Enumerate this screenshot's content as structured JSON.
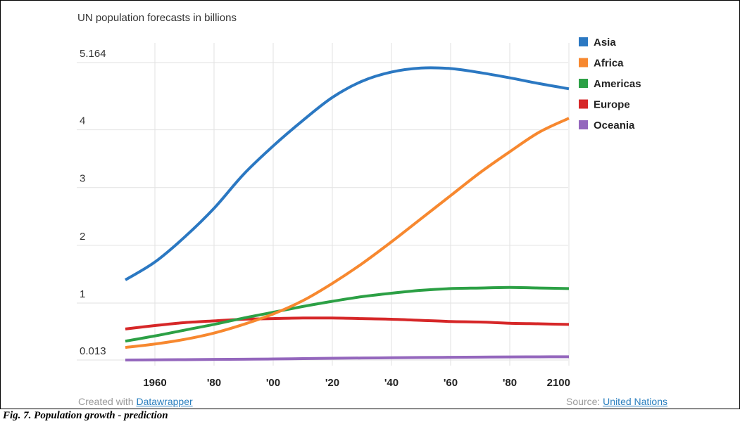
{
  "chart_data": {
    "type": "line",
    "title": "UN population forecasts in billions",
    "x": [
      1950,
      1960,
      1970,
      1980,
      1990,
      2000,
      2010,
      2020,
      2030,
      2040,
      2050,
      2060,
      2070,
      2080,
      2090,
      2100
    ],
    "x_tick_values": [
      1960,
      1980,
      2000,
      2020,
      2040,
      2060,
      2080,
      2100
    ],
    "x_tick_labels": [
      "1960",
      "'80",
      "'00",
      "'20",
      "'40",
      "'60",
      "'80",
      "2100"
    ],
    "y_tick_values": [
      5.164,
      4,
      3,
      2,
      1,
      0.013
    ],
    "y_tick_labels": [
      "5.164",
      "4",
      "3",
      "2",
      "1",
      "0.013"
    ],
    "xlim": [
      1950,
      2100
    ],
    "ylim": [
      0.013,
      5.164
    ],
    "grid": true,
    "legend_position": "top-right",
    "series": [
      {
        "name": "Asia",
        "color": "#2b78c2",
        "values": [
          1.4,
          1.71,
          2.14,
          2.64,
          3.23,
          3.72,
          4.16,
          4.56,
          4.84,
          5.0,
          5.07,
          5.06,
          4.99,
          4.9,
          4.8,
          4.71
        ]
      },
      {
        "name": "Africa",
        "color": "#f7882f",
        "values": [
          0.23,
          0.29,
          0.37,
          0.48,
          0.63,
          0.81,
          1.04,
          1.34,
          1.68,
          2.06,
          2.46,
          2.86,
          3.26,
          3.62,
          3.96,
          4.2
        ]
      },
      {
        "name": "Americas",
        "color": "#2ca045",
        "values": [
          0.34,
          0.43,
          0.53,
          0.63,
          0.74,
          0.84,
          0.94,
          1.03,
          1.11,
          1.17,
          1.22,
          1.25,
          1.26,
          1.27,
          1.26,
          1.25
        ]
      },
      {
        "name": "Europe",
        "color": "#d62728",
        "values": [
          0.55,
          0.61,
          0.66,
          0.69,
          0.72,
          0.73,
          0.74,
          0.74,
          0.73,
          0.72,
          0.7,
          0.68,
          0.67,
          0.65,
          0.64,
          0.63
        ]
      },
      {
        "name": "Oceania",
        "color": "#9467bd",
        "values": [
          0.013,
          0.016,
          0.019,
          0.023,
          0.027,
          0.031,
          0.037,
          0.043,
          0.048,
          0.052,
          0.057,
          0.06,
          0.063,
          0.066,
          0.068,
          0.07
        ]
      }
    ]
  },
  "footer": {
    "credit_prefix": "Created with ",
    "credit_link": "Datawrapper",
    "source_prefix": "Source: ",
    "source_link": "United Nations"
  },
  "caption": "Fig. 7. Population growth - prediction"
}
